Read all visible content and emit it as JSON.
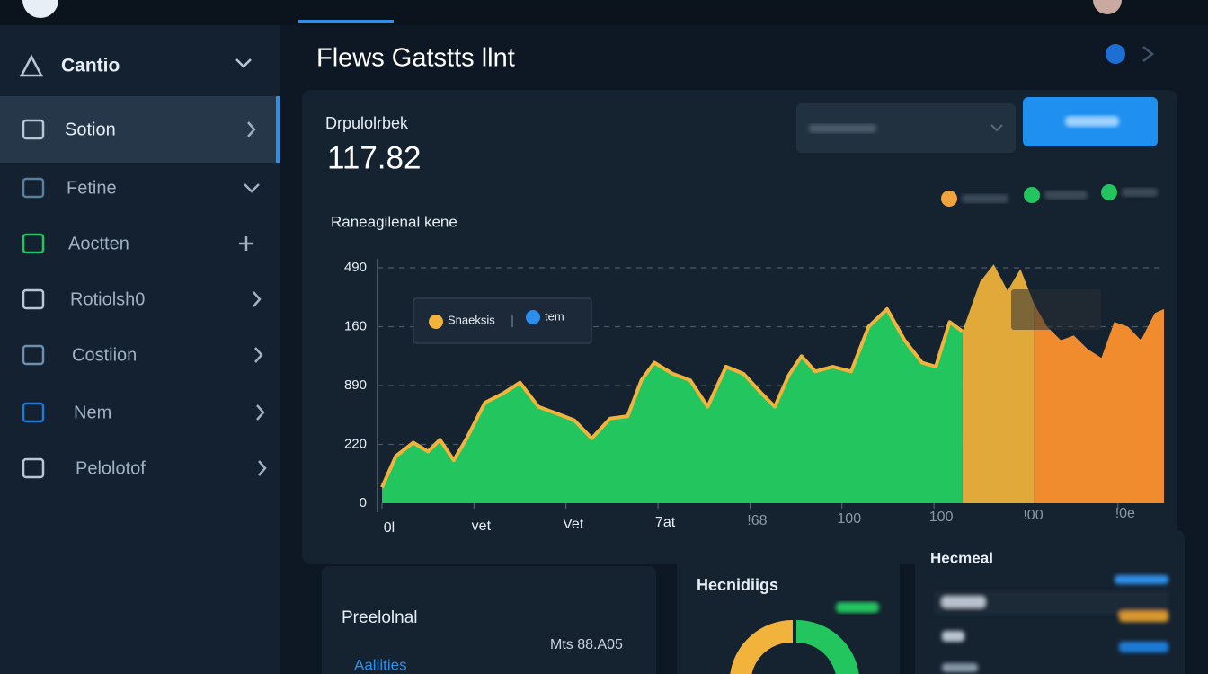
{
  "sidebar": {
    "brand": "Cantio",
    "items": [
      "Sotion",
      "Fetine",
      "Aoctten",
      "Rotiolsh0",
      "Costiion",
      "Nem",
      "Pelolotof"
    ]
  },
  "header": {
    "title": "Flews Gatstts llnt"
  },
  "main_card": {
    "stat_label": "Drpulolrbek",
    "stat_value": "117.82",
    "chart_label": "Raneagilenal kene",
    "tooltip": [
      "Snaeksis",
      "tem"
    ]
  },
  "chart_data": {
    "type": "area",
    "xlim": [
      0,
      8.5
    ],
    "ylim": [
      0,
      4
    ],
    "xticks": [
      {
        "value": 0,
        "label": "0l"
      },
      {
        "value": 1,
        "label": "vet"
      },
      {
        "value": 2,
        "label": "Vet"
      },
      {
        "value": 3,
        "label": "7at"
      },
      {
        "value": 4,
        "label": "!68"
      },
      {
        "value": 5,
        "label": "100"
      },
      {
        "value": 6,
        "label": "100"
      },
      {
        "value": 7,
        "label": "!00"
      },
      {
        "value": 8,
        "label": "!0e"
      }
    ],
    "yticks": [
      0,
      {
        "value": 1,
        "label": "220"
      },
      {
        "value": 2,
        "label": "890"
      },
      {
        "value": 3,
        "label": "160"
      },
      {
        "value": 4,
        "label": "490"
      }
    ],
    "grid": true,
    "series": [
      {
        "color": "#22c55e",
        "line_color": "#f2b33d",
        "x": [
          0,
          0.15,
          0.34,
          0.5,
          0.63,
          0.78,
          0.92,
          1.12,
          1.31,
          1.5,
          1.7,
          1.89,
          2.09,
          2.28,
          2.48,
          2.67,
          2.82,
          2.96,
          3.16,
          3.35,
          3.54,
          3.74,
          3.93,
          4.13,
          4.27,
          4.42,
          4.56,
          4.71,
          4.9,
          5.1,
          5.29,
          5.49,
          5.68,
          5.87,
          6.02,
          6.17,
          6.31
        ],
        "values": [
          0.27,
          0.8,
          1.03,
          0.88,
          1.08,
          0.73,
          1.1,
          1.71,
          1.86,
          2.05,
          1.64,
          1.53,
          1.41,
          1.1,
          1.44,
          1.48,
          2.09,
          2.39,
          2.2,
          2.09,
          1.64,
          2.32,
          2.2,
          1.86,
          1.64,
          2.17,
          2.5,
          2.24,
          2.32,
          2.24,
          3.0,
          3.3,
          2.77,
          2.39,
          2.32,
          3.08,
          2.92
        ]
      },
      {
        "color": "#e0a93a",
        "x": [
          6.31,
          6.5,
          6.65,
          6.8,
          6.94,
          7.09
        ],
        "values": [
          2.92,
          3.76,
          4.06,
          3.61,
          3.98,
          3.38
        ]
      },
      {
        "color": "#f08c2e",
        "x": [
          7.09,
          7.23,
          7.38,
          7.52,
          7.67,
          7.82,
          7.96,
          8.11,
          8.25,
          8.4,
          8.5
        ],
        "values": [
          3.38,
          3.0,
          2.77,
          2.85,
          2.62,
          2.47,
          3.08,
          3.0,
          2.77,
          3.23,
          3.3
        ]
      }
    ]
  },
  "panels": {
    "left": {
      "title": "Preelolnal",
      "value": "Mts 88.A05",
      "link": "Aaliities"
    },
    "middle": {
      "title": "Hecnidiigs"
    },
    "right": {
      "title": "Hecmeal"
    }
  }
}
